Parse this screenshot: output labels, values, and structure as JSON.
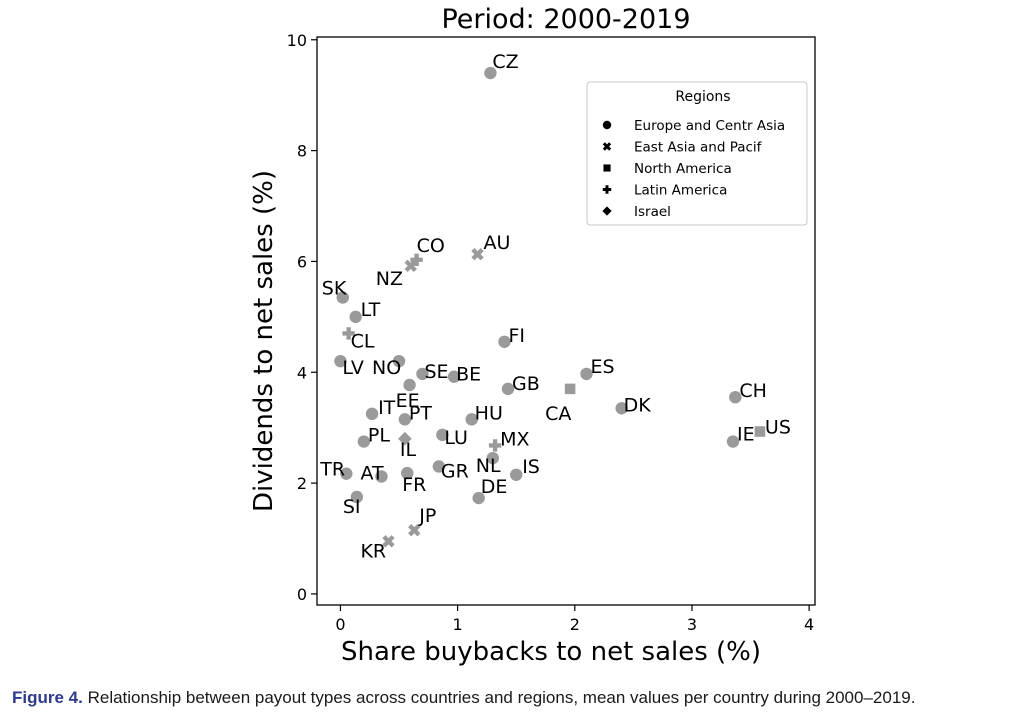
{
  "chart_data": {
    "type": "scatter",
    "title": "Period: 2000-2019",
    "xlabel": "Share buybacks to net sales (%)",
    "ylabel": "Dividends to net sales (%)",
    "xlim": [
      -0.2,
      4.05
    ],
    "ylim": [
      -0.2,
      10.05
    ],
    "xticks": [
      0,
      1,
      2,
      3,
      4
    ],
    "yticks": [
      0,
      2,
      4,
      6,
      8,
      10
    ],
    "grid": false,
    "legend": {
      "title": "Regions",
      "placement": "top-right",
      "entries": [
        {
          "name": "Europe and Centr Asia",
          "marker": "circle"
        },
        {
          "name": "East Asia and Pacif",
          "marker": "x"
        },
        {
          "name": "North America",
          "marker": "square"
        },
        {
          "name": "Latin America",
          "marker": "plus"
        },
        {
          "name": "Israel",
          "marker": "diamond"
        }
      ]
    },
    "marker_color": "#9a9a9a",
    "points": [
      {
        "label": "CZ",
        "x": 1.28,
        "y": 9.4,
        "region": "Europe and Centr Asia"
      },
      {
        "label": "SK",
        "x": 0.02,
        "y": 5.35,
        "region": "Europe and Centr Asia"
      },
      {
        "label": "LT",
        "x": 0.13,
        "y": 5.0,
        "region": "Europe and Centr Asia"
      },
      {
        "label": "LV",
        "x": 0.0,
        "y": 4.2,
        "region": "Europe and Centr Asia"
      },
      {
        "label": "NO",
        "x": 0.5,
        "y": 4.2,
        "region": "Europe and Centr Asia"
      },
      {
        "label": "SE",
        "x": 0.7,
        "y": 3.97,
        "region": "Europe and Centr Asia"
      },
      {
        "label": "BE",
        "x": 0.97,
        "y": 3.92,
        "region": "Europe and Centr Asia"
      },
      {
        "label": "EE",
        "x": 0.59,
        "y": 3.77,
        "region": "Europe and Centr Asia"
      },
      {
        "label": "FI",
        "x": 1.4,
        "y": 4.55,
        "region": "Europe and Centr Asia"
      },
      {
        "label": "GB",
        "x": 1.43,
        "y": 3.7,
        "region": "Europe and Centr Asia"
      },
      {
        "label": "ES",
        "x": 2.1,
        "y": 3.97,
        "region": "Europe and Centr Asia"
      },
      {
        "label": "DK",
        "x": 2.4,
        "y": 3.35,
        "region": "Europe and Centr Asia"
      },
      {
        "label": "CH",
        "x": 3.37,
        "y": 3.55,
        "region": "Europe and Centr Asia"
      },
      {
        "label": "IE",
        "x": 3.35,
        "y": 2.75,
        "region": "Europe and Centr Asia"
      },
      {
        "label": "IT",
        "x": 0.27,
        "y": 3.25,
        "region": "Europe and Centr Asia"
      },
      {
        "label": "PT",
        "x": 0.55,
        "y": 3.15,
        "region": "Europe and Centr Asia"
      },
      {
        "label": "HU",
        "x": 1.12,
        "y": 3.15,
        "region": "Europe and Centr Asia"
      },
      {
        "label": "PL",
        "x": 0.2,
        "y": 2.75,
        "region": "Europe and Centr Asia"
      },
      {
        "label": "LU",
        "x": 0.87,
        "y": 2.87,
        "region": "Europe and Centr Asia"
      },
      {
        "label": "NL",
        "x": 1.3,
        "y": 2.45,
        "region": "Europe and Centr Asia"
      },
      {
        "label": "TR",
        "x": 0.05,
        "y": 2.17,
        "region": "Europe and Centr Asia"
      },
      {
        "label": "AT",
        "x": 0.35,
        "y": 2.12,
        "region": "Europe and Centr Asia"
      },
      {
        "label": "FR",
        "x": 0.57,
        "y": 2.18,
        "region": "Europe and Centr Asia"
      },
      {
        "label": "GR",
        "x": 0.84,
        "y": 2.3,
        "region": "Europe and Centr Asia"
      },
      {
        "label": "IS",
        "x": 1.5,
        "y": 2.15,
        "region": "Europe and Centr Asia"
      },
      {
        "label": "DE",
        "x": 1.18,
        "y": 1.73,
        "region": "Europe and Centr Asia"
      },
      {
        "label": "SI",
        "x": 0.14,
        "y": 1.75,
        "region": "Europe and Centr Asia"
      },
      {
        "label": "AU",
        "x": 1.17,
        "y": 6.13,
        "region": "East Asia and Pacif"
      },
      {
        "label": "NZ",
        "x": 0.6,
        "y": 5.92,
        "region": "East Asia and Pacif"
      },
      {
        "label": "JP",
        "x": 0.63,
        "y": 1.15,
        "region": "East Asia and Pacif"
      },
      {
        "label": "KR",
        "x": 0.41,
        "y": 0.95,
        "region": "East Asia and Pacif"
      },
      {
        "label": "CA",
        "x": 1.96,
        "y": 3.7,
        "region": "North America"
      },
      {
        "label": "US",
        "x": 3.58,
        "y": 2.93,
        "region": "North America"
      },
      {
        "label": "CO",
        "x": 0.65,
        "y": 6.03,
        "region": "Latin America"
      },
      {
        "label": "CL",
        "x": 0.07,
        "y": 4.7,
        "region": "Latin America"
      },
      {
        "label": "MX",
        "x": 1.32,
        "y": 2.68,
        "region": "Latin America"
      },
      {
        "label": "IL",
        "x": 0.55,
        "y": 2.8,
        "region": "Israel"
      }
    ]
  },
  "caption": {
    "label": "Figure 4.",
    "text": "Relationship between payout types across countries and regions, mean values per country during 2000–2019."
  }
}
